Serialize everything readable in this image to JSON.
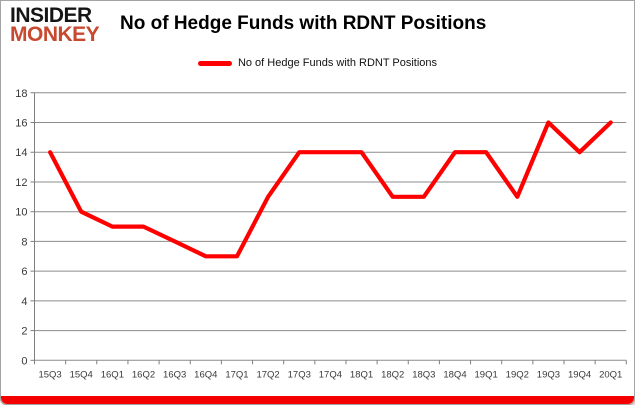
{
  "logo": {
    "line1": "INSIDER",
    "line2": "MONKEY",
    "color1": "#151515",
    "color2": "#c7492f"
  },
  "header": {
    "title": "No of Hedge Funds with RDNT Positions"
  },
  "legend": {
    "label": "No of Hedge Funds with RDNT Positions",
    "line_color": "#ff0000"
  },
  "colors": {
    "series_line": "#ff0000",
    "gridline": "#8c8c8c",
    "axis": "#7f7f7f",
    "tick_label": "#3a3a3a",
    "bottom_bar": "#f40000"
  },
  "chart_data": {
    "type": "line",
    "title": "No of Hedge Funds with RDNT Positions",
    "categories": [
      "15Q3",
      "15Q4",
      "16Q1",
      "16Q2",
      "16Q3",
      "16Q4",
      "17Q1",
      "17Q2",
      "17Q3",
      "17Q4",
      "18Q1",
      "18Q2",
      "18Q3",
      "18Q4",
      "19Q1",
      "19Q2",
      "19Q3",
      "19Q4",
      "20Q1"
    ],
    "series": [
      {
        "name": "No of Hedge Funds with RDNT Positions",
        "color": "#ff0000",
        "values": [
          14,
          10,
          9,
          9,
          8,
          7,
          7,
          11,
          14,
          14,
          14,
          11,
          11,
          14,
          14,
          11,
          16,
          14,
          16
        ]
      }
    ],
    "xlabel": "",
    "ylabel": "",
    "ylim": [
      0,
      18
    ],
    "ytick_step": 2,
    "yticks": [
      0,
      2,
      4,
      6,
      8,
      10,
      12,
      14,
      16,
      18
    ],
    "grid": "horizontal",
    "legend_position": "top-center"
  }
}
